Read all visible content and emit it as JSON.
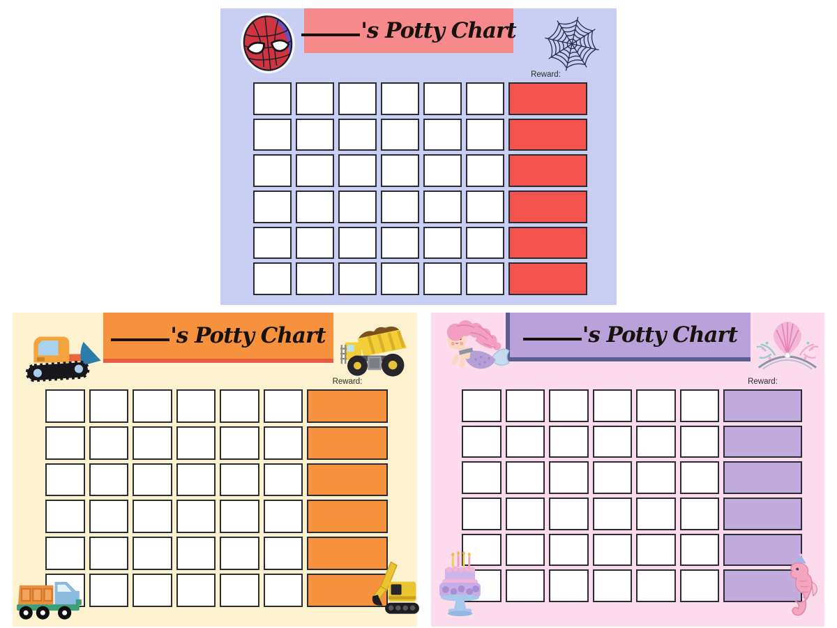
{
  "page": {
    "background": "#ffffff",
    "description": "Three themed potty training chart printables"
  },
  "charts": [
    {
      "id": "spiderman",
      "theme": "Spider-Man",
      "title": "'s Potty Chart",
      "reward_label": "Reward:",
      "grid": {
        "rows": 6,
        "day_columns": 6,
        "reward_columns": 1,
        "blank_cells": 36
      },
      "colors": {
        "background": "#c9cff2",
        "banner": "#f6898c",
        "banner_accent": "#ee666e",
        "reward_cell": "#f4534e",
        "cell": "#ffffff",
        "cell_border": "#2b2b33",
        "title_text": "#17120e"
      },
      "icons": {
        "top_left": "spiderman-mask",
        "top_right": "spider-web"
      }
    },
    {
      "id": "construction",
      "theme": "Construction trucks",
      "title": "'s Potty Chart",
      "reward_label": "Reward:",
      "grid": {
        "rows": 6,
        "day_columns": 6,
        "reward_columns": 1,
        "blank_cells": 36
      },
      "colors": {
        "background": "#fcf2d0",
        "banner": "#f6923d",
        "banner_accent": "#e85c45",
        "reward_cell": "#f6923d",
        "cell": "#ffffff",
        "cell_border": "#2b2b33",
        "title_text": "#17120e"
      },
      "icons": {
        "top_left": "bulldozer",
        "top_right": "dump-truck",
        "bottom_left": "small-dump-truck",
        "bottom_right": "excavator"
      }
    },
    {
      "id": "mermaid",
      "theme": "Mermaid",
      "title": "'s Potty Chart",
      "reward_label": "Reward:",
      "grid": {
        "rows": 6,
        "day_columns": 6,
        "reward_columns": 1,
        "blank_cells": 36
      },
      "colors": {
        "background": "#fbdbec",
        "banner": "#b8a2d9",
        "banner_accent": "#5d5d95",
        "reward_cell": "#c2abdd",
        "cell": "#ffffff",
        "cell_border": "#2b2b33",
        "title_text": "#17120e"
      },
      "icons": {
        "top_left": "mermaid",
        "top_right": "shell-tiara",
        "bottom_left": "watercolor-cake",
        "bottom_right": "seahorse"
      }
    }
  ]
}
